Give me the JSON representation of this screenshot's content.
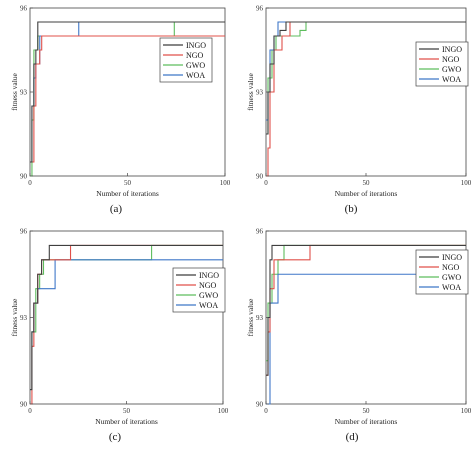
{
  "colors": {
    "INGO": "#3f3f3f",
    "NGO": "#e0504a",
    "GWO": "#5dbd5d",
    "WOA": "#3f77c8"
  },
  "chart_data": [
    {
      "type": "line",
      "panel_label": "(a)",
      "xlabel": "Number of iterations",
      "ylabel": "fitness value",
      "xlim": [
        0,
        100
      ],
      "ylim": [
        90,
        96
      ],
      "xticks": [
        0,
        50,
        100
      ],
      "yticks": [
        90,
        93,
        96
      ],
      "legend_position": "top-right",
      "grid": false,
      "series": [
        {
          "name": "INGO",
          "x": [
            0,
            1,
            1,
            2,
            2,
            3,
            3,
            4,
            4,
            100
          ],
          "y": [
            90.5,
            90.5,
            92.5,
            92.5,
            94,
            94,
            94.5,
            94.5,
            95.5,
            95.5
          ]
        },
        {
          "name": "NGO",
          "x": [
            0,
            2,
            2,
            3,
            3,
            5,
            5,
            6,
            6,
            100
          ],
          "y": [
            90.5,
            90.5,
            92.5,
            92.5,
            94,
            94,
            94.5,
            94.5,
            95,
            95
          ]
        },
        {
          "name": "GWO",
          "x": [
            0,
            1,
            1,
            2,
            2,
            4,
            4,
            74,
            74,
            100
          ],
          "y": [
            90,
            90,
            92,
            92,
            94.5,
            94.5,
            95,
            95,
            95.5,
            95.5
          ]
        },
        {
          "name": "WOA",
          "x": [
            0,
            1,
            1,
            2,
            2,
            3,
            3,
            5,
            5,
            25,
            25,
            100
          ],
          "y": [
            90.5,
            90.5,
            92.5,
            92.5,
            93.5,
            93.5,
            94,
            94,
            95,
            95,
            95.5,
            95.5
          ]
        }
      ]
    },
    {
      "type": "line",
      "panel_label": "(b)",
      "xlabel": "Number of iterations",
      "ylabel": "fitness value",
      "xlim": [
        0,
        100
      ],
      "ylim": [
        90,
        96
      ],
      "xticks": [
        0,
        50,
        100
      ],
      "yticks": [
        90,
        93,
        96
      ],
      "legend_position": "top-right",
      "grid": false,
      "series": [
        {
          "name": "INGO",
          "x": [
            0,
            1,
            1,
            2,
            2,
            4,
            4,
            7,
            7,
            10,
            10,
            100
          ],
          "y": [
            91.5,
            91.5,
            93,
            93,
            94,
            94,
            95,
            95,
            95.2,
            95.2,
            95.5,
            95.5
          ]
        },
        {
          "name": "NGO",
          "x": [
            0,
            1,
            1,
            2,
            2,
            4,
            4,
            8,
            8,
            12,
            12,
            100
          ],
          "y": [
            90,
            90,
            91,
            91,
            93,
            93,
            94.5,
            94.5,
            95,
            95,
            95.5,
            95.5
          ]
        },
        {
          "name": "GWO",
          "x": [
            0,
            1,
            1,
            3,
            3,
            5,
            5,
            17,
            17,
            20,
            20,
            100
          ],
          "y": [
            91.5,
            91.5,
            93.5,
            93.5,
            94.5,
            94.5,
            95,
            95,
            95.2,
            95.2,
            95.5,
            95.5
          ]
        },
        {
          "name": "WOA",
          "x": [
            0,
            1,
            1,
            2,
            2,
            4,
            4,
            6,
            6,
            100
          ],
          "y": [
            92,
            92,
            93,
            93,
            94.5,
            94.5,
            95,
            95,
            95.5,
            95.5
          ]
        }
      ]
    },
    {
      "type": "line",
      "panel_label": "(c)",
      "xlabel": "Number of iterations",
      "ylabel": "fitness value",
      "xlim": [
        0,
        100
      ],
      "ylim": [
        90,
        96
      ],
      "xticks": [
        0,
        50,
        100
      ],
      "yticks": [
        90,
        93,
        96
      ],
      "legend_position": "top-right",
      "grid": false,
      "series": [
        {
          "name": "INGO",
          "x": [
            0,
            1,
            1,
            2,
            2,
            4,
            4,
            6,
            6,
            10,
            10,
            100
          ],
          "y": [
            90.5,
            90.5,
            92.5,
            92.5,
            93.5,
            93.5,
            94.5,
            94.5,
            95,
            95,
            95.5,
            95.5
          ]
        },
        {
          "name": "NGO",
          "x": [
            0,
            1,
            1,
            2,
            2,
            4,
            4,
            6,
            6,
            21,
            21,
            100
          ],
          "y": [
            90,
            90,
            92,
            92,
            93.5,
            93.5,
            94.5,
            94.5,
            95,
            95,
            95.5,
            95.5
          ]
        },
        {
          "name": "GWO",
          "x": [
            0,
            1,
            1,
            3,
            3,
            5,
            5,
            7,
            7,
            63,
            63,
            100
          ],
          "y": [
            90.5,
            90.5,
            92.5,
            92.5,
            94,
            94,
            94.5,
            94.5,
            95,
            95,
            95.5,
            95.5
          ]
        },
        {
          "name": "WOA",
          "x": [
            0,
            1,
            1,
            2,
            2,
            4,
            4,
            13,
            13,
            100
          ],
          "y": [
            90.5,
            90.5,
            92.5,
            92.5,
            93.5,
            93.5,
            94,
            94,
            95,
            95
          ]
        }
      ]
    },
    {
      "type": "line",
      "panel_label": "(d)",
      "xlabel": "Number of iterations",
      "ylabel": "fitness value",
      "xlim": [
        0,
        100
      ],
      "ylim": [
        90,
        96
      ],
      "xticks": [
        0,
        50,
        100
      ],
      "yticks": [
        90,
        93,
        96
      ],
      "legend_position": "top-right",
      "grid": false,
      "series": [
        {
          "name": "INGO",
          "x": [
            0,
            1,
            1,
            2,
            2,
            3,
            3,
            6,
            6,
            100
          ],
          "y": [
            91,
            91,
            93,
            93,
            95,
            95,
            95.5,
            95.5,
            95.5,
            95.5
          ]
        },
        {
          "name": "NGO",
          "x": [
            0,
            1,
            1,
            2,
            2,
            4,
            4,
            22,
            22,
            100
          ],
          "y": [
            91,
            91,
            92.5,
            92.5,
            94,
            94,
            95,
            95,
            95.5,
            95.5
          ]
        },
        {
          "name": "GWO",
          "x": [
            0,
            1,
            1,
            3,
            3,
            6,
            6,
            9,
            9,
            100
          ],
          "y": [
            91.5,
            91.5,
            93.5,
            93.5,
            94.5,
            94.5,
            95,
            95,
            95.5,
            95.5
          ]
        },
        {
          "name": "WOA",
          "x": [
            0,
            2,
            2,
            3,
            3,
            6,
            6,
            78,
            78,
            100
          ],
          "y": [
            90,
            90,
            93.5,
            93.5,
            93.5,
            93.5,
            94.5,
            94.5,
            95,
            95
          ]
        }
      ]
    }
  ]
}
